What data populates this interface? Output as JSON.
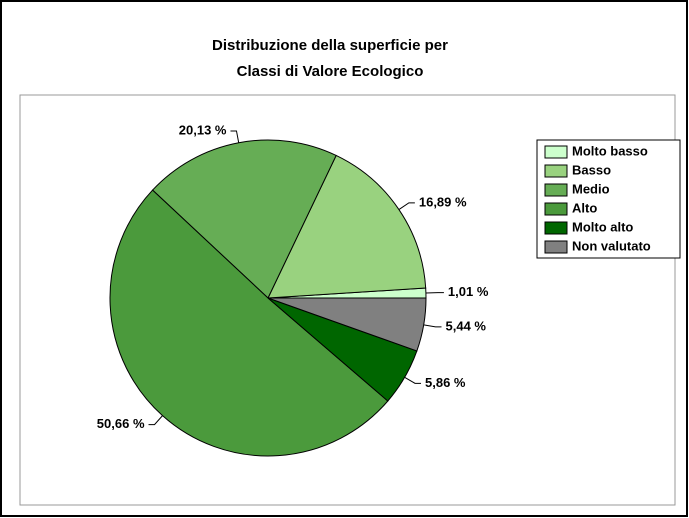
{
  "chart_data": {
    "type": "pie",
    "title": [
      "Distribuzione della superficie per",
      "Classi di Valore Ecologico"
    ],
    "categories": [
      "Molto basso",
      "Basso",
      "Medio",
      "Alto",
      "Molto alto",
      "Non valutato"
    ],
    "values": [
      1.01,
      16.89,
      20.13,
      50.66,
      5.86,
      5.44
    ],
    "value_labels": [
      "1,01 %",
      "16,89 %",
      "20,13 %",
      "50,66 %",
      "5,86 %",
      "5,44 %"
    ],
    "colors": [
      "#ccffcc",
      "#99d27f",
      "#66ad55",
      "#4b9a3c",
      "#006600",
      "#808080"
    ],
    "legend": "right"
  }
}
